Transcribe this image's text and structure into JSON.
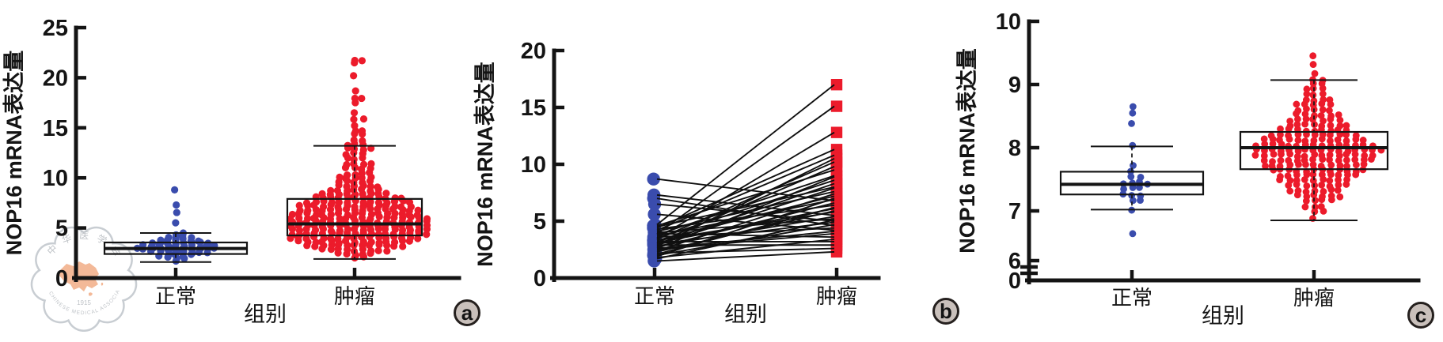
{
  "figure": {
    "colors": {
      "normal_blue": "#3A4CAD",
      "tumor_red": "#EC1B2B",
      "axis_black": "#141414",
      "badge_fill": "#C9C0BB",
      "badge_border": "#25201E",
      "watermark_gray": "#C3C8CE",
      "watermark_text": "#B9BDC2",
      "watermark_map": "#F2B28D"
    },
    "watermark": {
      "org_cn": "中华医学会",
      "year": "1915",
      "org_en": "CHINESE MEDICAL ASSOCIATION"
    }
  },
  "chart_data": [
    {
      "type": "scatter",
      "subtype": "beeswarm-box",
      "panel_label": "a",
      "ylabel": "NOP16 mRNA表达量",
      "xlabel": "组别",
      "categories": [
        "正常",
        "肿瘤"
      ],
      "yticks": [
        0,
        5,
        10,
        15,
        20,
        25
      ],
      "ylim": [
        0,
        25
      ],
      "grid": false,
      "groups": [
        {
          "name": "正常",
          "color": "normal_blue",
          "box": {
            "whisker_low": 1.6,
            "q1": 2.4,
            "median": 2.95,
            "q3": 3.55,
            "whisker_high": 4.5
          },
          "bins": [
            [
              1.7,
              1
            ],
            [
              2.0,
              3
            ],
            [
              2.3,
              5
            ],
            [
              2.6,
              8
            ],
            [
              2.9,
              11
            ],
            [
              3.2,
              10
            ],
            [
              3.5,
              8
            ],
            [
              3.8,
              6
            ],
            [
              4.1,
              4
            ],
            [
              4.4,
              2
            ],
            [
              5.4,
              1
            ],
            [
              6.5,
              1
            ],
            [
              7.3,
              1
            ],
            [
              8.7,
              1
            ]
          ]
        },
        {
          "name": "肿瘤",
          "color": "tumor_red",
          "box": {
            "whisker_low": 1.9,
            "q1": 4.25,
            "median": 5.4,
            "q3": 7.9,
            "whisker_high": 13.2
          },
          "bins": [
            [
              2.0,
              2
            ],
            [
              2.4,
              5
            ],
            [
              2.8,
              9
            ],
            [
              3.2,
              13
            ],
            [
              3.6,
              15
            ],
            [
              4.0,
              17
            ],
            [
              4.4,
              18
            ],
            [
              4.8,
              18
            ],
            [
              5.2,
              18
            ],
            [
              5.6,
              18
            ],
            [
              6.0,
              18
            ],
            [
              6.4,
              17
            ],
            [
              6.8,
              16
            ],
            [
              7.2,
              15
            ],
            [
              7.6,
              14
            ],
            [
              8.0,
              12
            ],
            [
              8.4,
              9
            ],
            [
              8.8,
              7
            ],
            [
              9.2,
              6
            ],
            [
              9.6,
              5
            ],
            [
              10.0,
              5
            ],
            [
              10.4,
              4
            ],
            [
              10.9,
              4
            ],
            [
              11.4,
              4
            ],
            [
              11.9,
              3
            ],
            [
              12.4,
              3
            ],
            [
              12.9,
              4
            ],
            [
              13.3,
              3
            ],
            [
              13.8,
              2
            ],
            [
              14.3,
              2
            ],
            [
              14.8,
              2
            ],
            [
              15.3,
              1
            ],
            [
              15.8,
              2
            ],
            [
              16.4,
              1
            ],
            [
              17.5,
              1
            ],
            [
              18.0,
              2
            ],
            [
              18.6,
              1
            ],
            [
              20.1,
              1
            ],
            [
              21.5,
              1
            ],
            [
              21.8,
              2
            ]
          ]
        }
      ]
    },
    {
      "type": "line",
      "subtype": "paired",
      "panel_label": "b",
      "ylabel": "NOP16 mRNA表达量",
      "xlabel": "组别",
      "categories": [
        "正常",
        "肿瘤"
      ],
      "yticks": [
        0,
        5,
        10,
        15,
        20
      ],
      "ylim": [
        0,
        20
      ],
      "grid": false,
      "series": [
        {
          "name": "正常",
          "color": "normal_blue",
          "marker": "circle",
          "values": [
            8.7,
            7.3,
            7.0,
            6.5,
            5.6,
            4.7,
            4.6,
            4.5,
            4.4,
            4.3,
            4.2,
            4.1,
            4.0,
            3.9,
            3.9,
            3.8,
            3.7,
            3.6,
            3.5,
            3.5,
            3.4,
            3.3,
            3.3,
            3.2,
            3.1,
            3.1,
            3.0,
            3.0,
            2.9,
            2.9,
            2.8,
            2.8,
            2.7,
            2.6,
            2.6,
            2.5,
            2.4,
            2.3,
            2.2,
            2.1,
            2.0,
            1.9,
            1.8,
            1.7,
            1.5
          ]
        },
        {
          "name": "肿瘤",
          "color": "tumor_red",
          "marker": "square",
          "values": [
            6.8,
            5.5,
            4.6,
            5.0,
            4.2,
            17.0,
            9.5,
            8.0,
            11.3,
            6.4,
            10.8,
            7.6,
            5.2,
            15.1,
            3.6,
            9.0,
            6.9,
            4.4,
            12.8,
            8.6,
            10.2,
            5.8,
            7.2,
            3.2,
            9.8,
            6.1,
            4.9,
            8.3,
            2.9,
            7.9,
            10.5,
            5.4,
            6.6,
            4.1,
            8.9,
            3.9,
            7.4,
            5.9,
            2.6,
            6.2,
            4.7,
            7.0,
            3.4,
            5.1,
            2.3
          ]
        }
      ]
    },
    {
      "type": "scatter",
      "subtype": "beeswarm-box",
      "panel_label": "c",
      "ylabel": "NOP16 mRNA表达量",
      "xlabel": "组别",
      "categories": [
        "正常",
        "肿瘤"
      ],
      "yticks": [
        0,
        6,
        7,
        8,
        9,
        10
      ],
      "ylim": [
        6,
        10
      ],
      "axis_break_between": [
        0,
        6
      ],
      "grid": false,
      "groups": [
        {
          "name": "正常",
          "color": "normal_blue",
          "box": {
            "whisker_low": 7.02,
            "q1": 7.26,
            "median": 7.42,
            "q3": 7.62,
            "whisker_high": 8.02
          },
          "values": [
            6.65,
            7.03,
            7.17,
            7.21,
            7.25,
            7.28,
            7.32,
            7.36,
            7.4,
            7.42,
            7.44,
            7.46,
            7.48,
            7.5,
            7.53,
            7.57,
            7.62,
            7.7,
            8.02,
            8.4,
            8.55,
            8.65
          ]
        },
        {
          "name": "肿瘤",
          "color": "tumor_red",
          "box": {
            "whisker_low": 6.85,
            "q1": 7.66,
            "median": 8.0,
            "q3": 8.25,
            "whisker_high": 9.07
          },
          "bins": [
            [
              6.88,
              1
            ],
            [
              7.0,
              2
            ],
            [
              7.08,
              3
            ],
            [
              7.16,
              4
            ],
            [
              7.24,
              6
            ],
            [
              7.32,
              7
            ],
            [
              7.4,
              8
            ],
            [
              7.48,
              9
            ],
            [
              7.56,
              10
            ],
            [
              7.64,
              12
            ],
            [
              7.72,
              13
            ],
            [
              7.8,
              14
            ],
            [
              7.88,
              15
            ],
            [
              7.96,
              16
            ],
            [
              8.04,
              15
            ],
            [
              8.12,
              13
            ],
            [
              8.2,
              11
            ],
            [
              8.28,
              9
            ],
            [
              8.36,
              8
            ],
            [
              8.44,
              7
            ],
            [
              8.52,
              6
            ],
            [
              8.6,
              5
            ],
            [
              8.68,
              5
            ],
            [
              8.76,
              4
            ],
            [
              8.84,
              3
            ],
            [
              8.92,
              3
            ],
            [
              9.0,
              2
            ],
            [
              9.08,
              2
            ],
            [
              9.18,
              1
            ],
            [
              9.3,
              1
            ],
            [
              9.45,
              1
            ]
          ]
        }
      ]
    }
  ]
}
